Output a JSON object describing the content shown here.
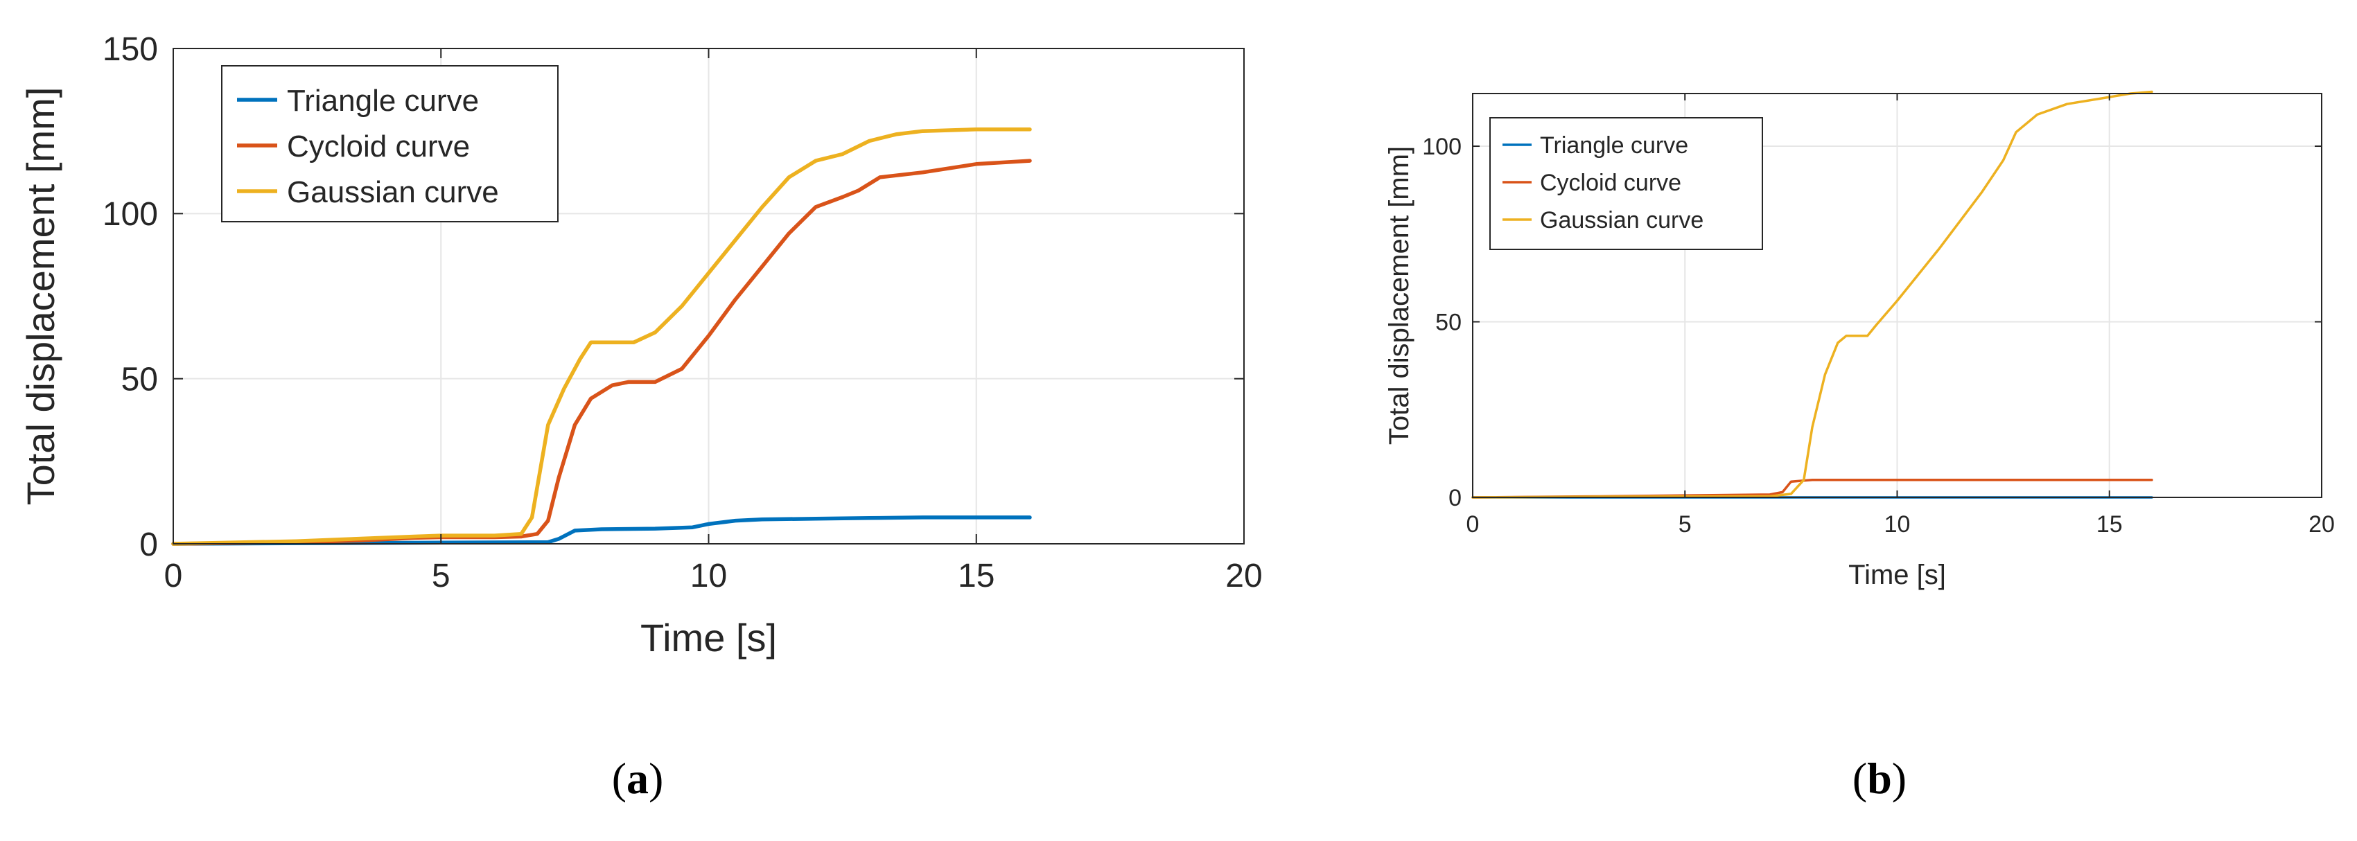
{
  "colors": {
    "triangle": "#0072BD",
    "cycloid": "#D95319",
    "gaussian": "#EDB120",
    "axis": "#262626",
    "grid": "#E6E6E6"
  },
  "chart_data": [
    {
      "type": "line",
      "panel_label": {
        "open": "(",
        "letter": "a",
        "close": ")"
      },
      "title": "",
      "xlabel": "Time [s]",
      "ylabel": "Total displacement [mm]",
      "xlim": [
        0,
        20
      ],
      "ylim": [
        0,
        150
      ],
      "xticks": [
        0,
        5,
        10,
        15,
        20
      ],
      "yticks": [
        0,
        50,
        100,
        150
      ],
      "grid": true,
      "legend_position": "top-left",
      "series": [
        {
          "name": "Triangle curve",
          "color": "#0072BD",
          "points": [
            [
              0,
              0
            ],
            [
              4,
              0.3
            ],
            [
              7,
              0.5
            ],
            [
              7.2,
              1.5
            ],
            [
              7.5,
              4
            ],
            [
              8,
              4.4
            ],
            [
              9,
              4.6
            ],
            [
              9.7,
              5
            ],
            [
              10,
              6
            ],
            [
              10.5,
              7
            ],
            [
              11,
              7.4
            ],
            [
              12,
              7.6
            ],
            [
              13,
              7.8
            ],
            [
              14,
              8
            ],
            [
              15,
              8
            ],
            [
              16,
              8
            ]
          ]
        },
        {
          "name": "Cycloid curve",
          "color": "#D95319",
          "points": [
            [
              0,
              0
            ],
            [
              2.3,
              0.5
            ],
            [
              3.5,
              1
            ],
            [
              4.5,
              1.8
            ],
            [
              5,
              2
            ],
            [
              6,
              2
            ],
            [
              6.5,
              2.2
            ],
            [
              6.8,
              3
            ],
            [
              7,
              7
            ],
            [
              7.2,
              20
            ],
            [
              7.5,
              36
            ],
            [
              7.8,
              44
            ],
            [
              8.2,
              48
            ],
            [
              8.5,
              49
            ],
            [
              9,
              49
            ],
            [
              9.5,
              53
            ],
            [
              10,
              63
            ],
            [
              10.5,
              74
            ],
            [
              11,
              84
            ],
            [
              11.5,
              94
            ],
            [
              12,
              102
            ],
            [
              12.5,
              105
            ],
            [
              12.8,
              107
            ],
            [
              13.2,
              111
            ],
            [
              14,
              112.5
            ],
            [
              15,
              115
            ],
            [
              16,
              116
            ]
          ]
        },
        {
          "name": "Gaussian curve",
          "color": "#EDB120",
          "points": [
            [
              0,
              0
            ],
            [
              2.3,
              0.8
            ],
            [
              4.5,
              2.2
            ],
            [
              5,
              2.5
            ],
            [
              6,
              2.5
            ],
            [
              6.5,
              3
            ],
            [
              6.7,
              8
            ],
            [
              7,
              36
            ],
            [
              7.3,
              47
            ],
            [
              7.6,
              56
            ],
            [
              7.8,
              61
            ],
            [
              8,
              61
            ],
            [
              8.6,
              61
            ],
            [
              9,
              64
            ],
            [
              9.5,
              72
            ],
            [
              10,
              82
            ],
            [
              10.5,
              92
            ],
            [
              11,
              102
            ],
            [
              11.5,
              111
            ],
            [
              12,
              116
            ],
            [
              12.5,
              118
            ],
            [
              13,
              122
            ],
            [
              13.5,
              124
            ],
            [
              14,
              125
            ],
            [
              15,
              125.5
            ],
            [
              16,
              125.5
            ]
          ]
        }
      ]
    },
    {
      "type": "line",
      "panel_label": {
        "open": "(",
        "letter": "b",
        "close": ")"
      },
      "title": "",
      "xlabel": "Time [s]",
      "ylabel": "Total displacement [mm]",
      "xlim": [
        0,
        20
      ],
      "ylim": [
        0,
        115
      ],
      "xticks": [
        0,
        5,
        10,
        15,
        20
      ],
      "yticks": [
        0,
        50,
        100
      ],
      "grid": true,
      "legend_position": "top-left",
      "series": [
        {
          "name": "Triangle curve",
          "color": "#0072BD",
          "points": [
            [
              0,
              0
            ],
            [
              16,
              0
            ]
          ]
        },
        {
          "name": "Cycloid curve",
          "color": "#D95319",
          "points": [
            [
              0,
              0
            ],
            [
              3,
              0.3
            ],
            [
              7,
              0.8
            ],
            [
              7.3,
              1.5
            ],
            [
              7.5,
              4.5
            ],
            [
              8,
              5
            ],
            [
              16,
              5
            ]
          ]
        },
        {
          "name": "Gaussian curve",
          "color": "#EDB120",
          "points": [
            [
              0,
              0
            ],
            [
              3,
              0.2
            ],
            [
              7,
              0.3
            ],
            [
              7.5,
              1
            ],
            [
              7.8,
              5
            ],
            [
              8,
              20
            ],
            [
              8.3,
              35
            ],
            [
              8.6,
              44
            ],
            [
              8.8,
              46
            ],
            [
              9.3,
              46
            ],
            [
              9.5,
              49
            ],
            [
              10,
              56
            ],
            [
              11,
              71
            ],
            [
              12,
              87
            ],
            [
              12.5,
              96
            ],
            [
              12.8,
              104
            ],
            [
              13.3,
              109
            ],
            [
              14,
              112
            ],
            [
              15,
              114
            ],
            [
              15.5,
              115
            ],
            [
              16,
              115.5
            ]
          ]
        }
      ]
    }
  ]
}
